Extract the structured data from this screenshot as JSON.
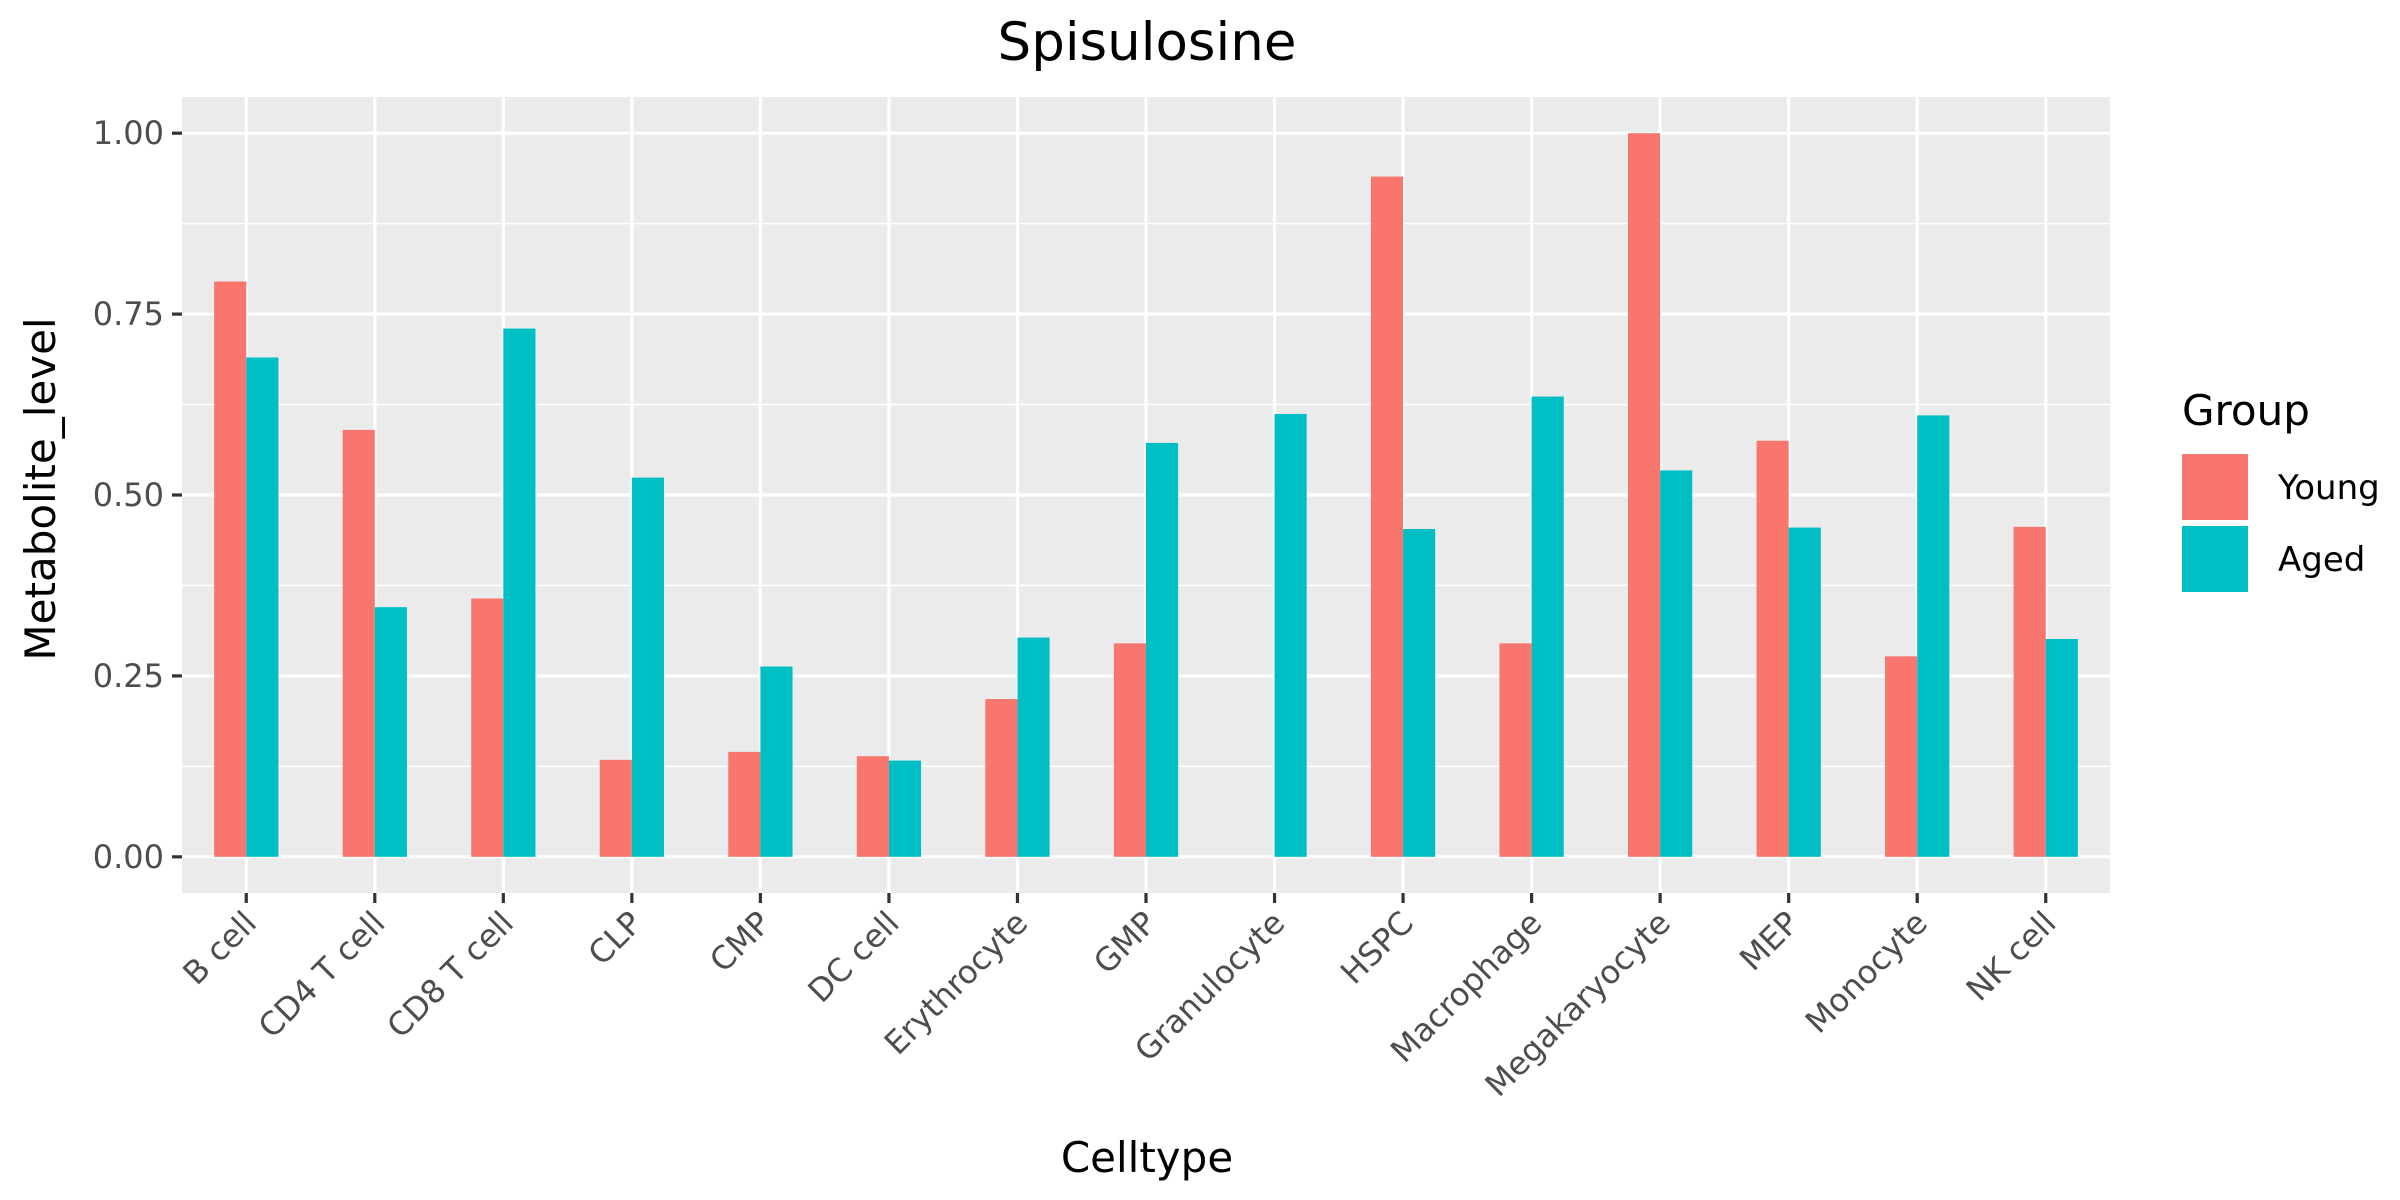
{
  "chart_data": {
    "type": "bar",
    "title": "Spisulosine",
    "xlabel": "Celltype",
    "ylabel": "Metabolite_level",
    "ylim": [
      -0.05,
      1.05
    ],
    "yticks": [
      0.0,
      0.25,
      0.5,
      0.75,
      1.0
    ],
    "ytick_labels": [
      "0.00",
      "0.25",
      "0.50",
      "0.75",
      "1.00"
    ],
    "grid": true,
    "legend": {
      "title": "Group",
      "position": "right"
    },
    "categories": [
      "B cell",
      "CD4 T cell",
      "CD8 T cell",
      "CLP",
      "CMP",
      "DC cell",
      "Erythrocyte",
      "GMP",
      "Granulocyte",
      "HSPC",
      "Macrophage",
      "Megakaryocyte",
      "MEP",
      "Monocyte",
      "NK cell"
    ],
    "series": [
      {
        "name": "Young",
        "color": "#F8766D",
        "values": [
          0.795,
          0.59,
          0.357,
          0.134,
          0.145,
          0.139,
          0.218,
          0.295,
          0.0,
          0.94,
          0.295,
          1.0,
          0.575,
          0.277,
          0.456
        ]
      },
      {
        "name": "Aged",
        "color": "#00BFC4",
        "values": [
          0.69,
          0.345,
          0.73,
          0.524,
          0.263,
          0.133,
          0.303,
          0.572,
          0.612,
          0.453,
          0.636,
          0.534,
          0.455,
          0.61,
          0.301
        ]
      }
    ]
  }
}
